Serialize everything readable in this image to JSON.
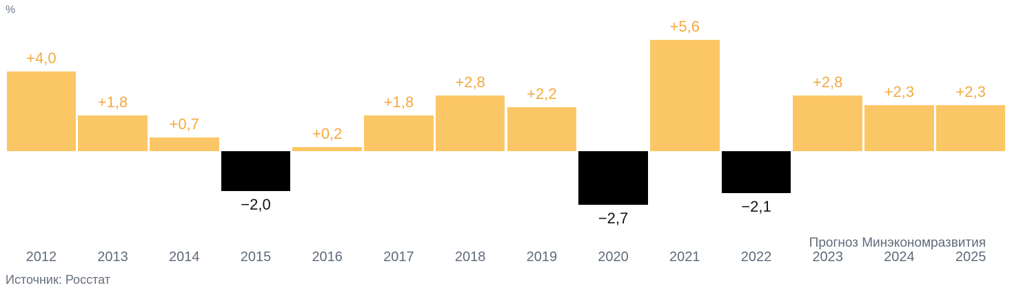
{
  "chart_data": {
    "type": "bar",
    "title": "",
    "unit_label": "%",
    "categories": [
      "2012",
      "2013",
      "2014",
      "2015",
      "2016",
      "2017",
      "2018",
      "2019",
      "2020",
      "2021",
      "2022",
      "2023",
      "2024",
      "2025"
    ],
    "values": [
      4.0,
      1.8,
      0.7,
      -2.0,
      0.2,
      1.8,
      2.8,
      2.2,
      -2.7,
      5.6,
      -2.1,
      2.8,
      2.3,
      2.3
    ],
    "value_labels": [
      "+4,0",
      "+1,8",
      "+0,7",
      "−2,0",
      "+0,2",
      "+1,8",
      "+2,8",
      "+2,2",
      "−2,7",
      "+5,6",
      "−2,1",
      "+2,8",
      "+2,3",
      "+2,3"
    ],
    "forecast_note": "Прогноз Минэкономразвития",
    "source": "Источник: Росстат",
    "xlabel": "",
    "ylabel": "%",
    "ylim": [
      -3.5,
      6.5
    ],
    "grid": false,
    "legend": "none",
    "colors": {
      "bar_positive": "#FBC766",
      "bar_negative": "#000000",
      "label_positive": "#F3A93F",
      "label_negative": "#121212",
      "axis_text": "#5f6b7a",
      "note_text": "#66707d"
    }
  }
}
